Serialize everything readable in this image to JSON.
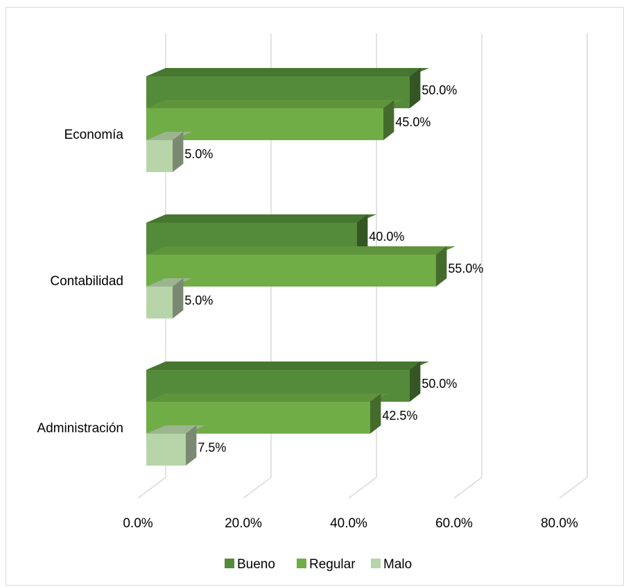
{
  "chart_data": {
    "type": "bar",
    "orientation": "horizontal",
    "style": "3d-clustered",
    "categories": [
      "Economía",
      "Contabilidad",
      "Administración"
    ],
    "series": [
      {
        "name": "Bueno",
        "color": "#548b3a",
        "values": [
          50.0,
          40.0,
          50.0
        ],
        "labels": [
          "50.0%",
          "40.0%",
          "50.0%"
        ]
      },
      {
        "name": "Regular",
        "color": "#70ad47",
        "values": [
          45.0,
          55.0,
          42.5
        ],
        "labels": [
          "45.0%",
          "55.0%",
          "42.5%"
        ]
      },
      {
        "name": "Malo",
        "color": "#b7d5a8",
        "values": [
          5.0,
          5.0,
          7.5
        ],
        "labels": [
          "5.0%",
          "5.0%",
          "7.5%"
        ]
      }
    ],
    "xlim": [
      0,
      80
    ],
    "ticks": [
      0,
      20,
      40,
      60,
      80
    ],
    "tick_labels": [
      "0.0%",
      "20.0%",
      "40.0%",
      "60.0%",
      "80.0%"
    ],
    "grid": true,
    "legend": "bottom"
  }
}
